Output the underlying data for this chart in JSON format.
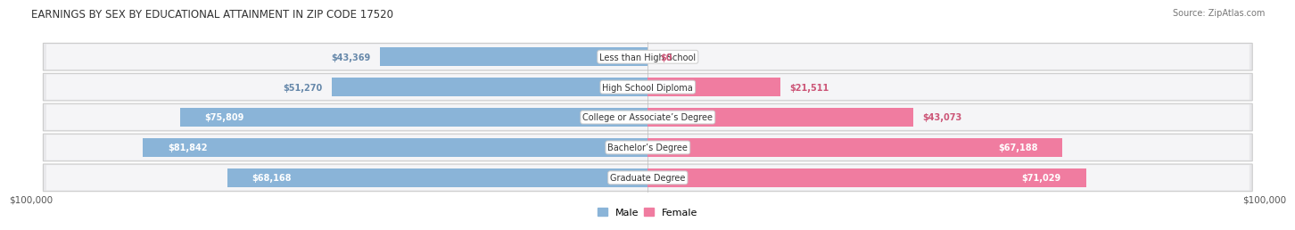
{
  "title": "EARNINGS BY SEX BY EDUCATIONAL ATTAINMENT IN ZIP CODE 17520",
  "source": "Source: ZipAtlas.com",
  "categories": [
    "Less than High School",
    "High School Diploma",
    "College or Associate’s Degree",
    "Bachelor’s Degree",
    "Graduate Degree"
  ],
  "male_values": [
    43369,
    51270,
    75809,
    81842,
    68168
  ],
  "female_values": [
    0,
    21511,
    43073,
    67188,
    71029
  ],
  "male_color": "#8ab4d8",
  "female_color": "#f07ca0",
  "row_bg_color": "#e8e8eb",
  "row_inner_bg": "#f5f5f7",
  "max_val": 100000,
  "tick_label": "$100,000",
  "legend_male": "Male",
  "legend_female": "Female",
  "title_fontsize": 8.5,
  "source_fontsize": 7,
  "value_fontsize": 7,
  "cat_fontsize": 7
}
